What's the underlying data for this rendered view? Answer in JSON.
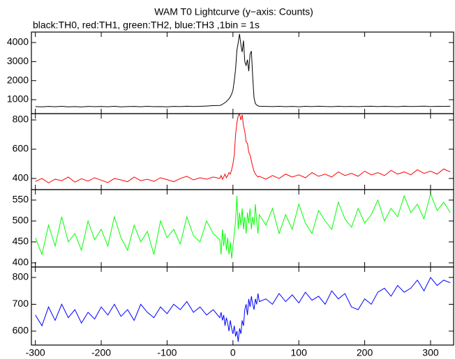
{
  "title": "WAM T0 Lightcurve (y−axis: Counts)",
  "subtitle": "black:TH0, red:TH1, green:TH2, blue:TH3 ,1bin = 1s",
  "chart_data": [
    {
      "type": "line",
      "color": "#000000",
      "xlim": [
        -306,
        335
      ],
      "xticks": [
        -300,
        -200,
        -100,
        0,
        100,
        200,
        300
      ],
      "ylim": [
        270,
        4550
      ],
      "yticks": [
        1000,
        2000,
        3000,
        4000
      ],
      "x": [
        -300,
        -290,
        -280,
        -270,
        -260,
        -250,
        -240,
        -230,
        -220,
        -210,
        -200,
        -190,
        -180,
        -170,
        -160,
        -150,
        -140,
        -130,
        -120,
        -110,
        -100,
        -90,
        -80,
        -70,
        -60,
        -50,
        -40,
        -30,
        -20,
        -18,
        -16,
        -14,
        -12,
        -10,
        -8,
        -6,
        -4,
        -2,
        0,
        2,
        4,
        6,
        8,
        10,
        12,
        14,
        16,
        18,
        20,
        22,
        24,
        26,
        28,
        30,
        32,
        34,
        36,
        38,
        40,
        50,
        60,
        70,
        80,
        90,
        100,
        110,
        120,
        130,
        140,
        150,
        160,
        170,
        180,
        190,
        200,
        210,
        220,
        230,
        240,
        250,
        260,
        270,
        280,
        290,
        300,
        310,
        320,
        330
      ],
      "values": [
        640,
        625,
        648,
        630,
        655,
        628,
        642,
        620,
        650,
        635,
        645,
        630,
        652,
        625,
        640,
        648,
        630,
        655,
        635,
        642,
        628,
        650,
        640,
        660,
        645,
        655,
        670,
        690,
        700,
        720,
        760,
        800,
        850,
        900,
        980,
        1050,
        1150,
        1300,
        1500,
        2000,
        2600,
        3600,
        4000,
        4450,
        3900,
        3500,
        4100,
        3000,
        2800,
        3100,
        2500,
        3400,
        3550,
        2200,
        1100,
        800,
        720,
        680,
        660,
        650,
        640,
        655,
        635,
        648,
        630,
        652,
        640,
        660,
        645,
        638,
        655,
        642,
        650,
        636,
        648,
        660,
        640,
        652,
        645,
        638,
        658,
        644,
        650,
        662,
        640,
        655,
        648,
        660
      ]
    },
    {
      "type": "line",
      "color": "#ff0000",
      "xlim": [
        -306,
        335
      ],
      "xticks": [
        -300,
        -200,
        -100,
        0,
        100,
        200,
        300
      ],
      "ylim": [
        324,
        843
      ],
      "yticks": [
        400,
        600,
        800
      ],
      "x": [
        -300,
        -290,
        -280,
        -270,
        -260,
        -250,
        -240,
        -230,
        -220,
        -210,
        -200,
        -190,
        -180,
        -170,
        -160,
        -150,
        -140,
        -130,
        -120,
        -110,
        -100,
        -90,
        -80,
        -70,
        -60,
        -50,
        -40,
        -30,
        -20,
        -18,
        -16,
        -14,
        -12,
        -10,
        -8,
        -6,
        -4,
        -2,
        0,
        2,
        4,
        6,
        8,
        10,
        12,
        14,
        16,
        18,
        20,
        22,
        24,
        26,
        28,
        30,
        32,
        34,
        36,
        38,
        40,
        50,
        60,
        70,
        80,
        90,
        100,
        110,
        120,
        130,
        140,
        150,
        160,
        170,
        180,
        190,
        200,
        210,
        220,
        230,
        240,
        250,
        260,
        270,
        280,
        290,
        300,
        310,
        320,
        330
      ],
      "values": [
        380,
        400,
        370,
        395,
        385,
        410,
        375,
        398,
        382,
        405,
        388,
        372,
        400,
        390,
        378,
        410,
        385,
        395,
        380,
        405,
        392,
        378,
        400,
        415,
        390,
        405,
        395,
        410,
        400,
        420,
        395,
        410,
        430,
        405,
        420,
        440,
        430,
        460,
        500,
        560,
        700,
        780,
        830,
        840,
        800,
        835,
        760,
        720,
        650,
        640,
        580,
        560,
        520,
        480,
        450,
        430,
        420,
        410,
        415,
        395,
        420,
        400,
        430,
        410,
        425,
        405,
        440,
        415,
        430,
        410,
        445,
        420,
        435,
        415,
        450,
        425,
        440,
        420,
        455,
        430,
        445,
        425,
        460,
        435,
        450,
        430,
        465,
        445
      ]
    },
    {
      "type": "line",
      "color": "#00ff00",
      "xlim": [
        -306,
        335
      ],
      "xticks": [
        -300,
        -200,
        -100,
        0,
        100,
        200,
        300
      ],
      "ylim": [
        390,
        575
      ],
      "yticks": [
        400,
        450,
        500,
        550
      ],
      "x": [
        -300,
        -290,
        -280,
        -270,
        -260,
        -250,
        -240,
        -230,
        -220,
        -210,
        -200,
        -190,
        -180,
        -170,
        -160,
        -150,
        -140,
        -130,
        -120,
        -110,
        -100,
        -90,
        -80,
        -70,
        -60,
        -50,
        -40,
        -30,
        -20,
        -18,
        -16,
        -14,
        -12,
        -10,
        -8,
        -6,
        -4,
        -2,
        0,
        2,
        4,
        6,
        8,
        10,
        12,
        14,
        16,
        18,
        20,
        22,
        24,
        26,
        28,
        30,
        32,
        34,
        36,
        38,
        40,
        50,
        60,
        70,
        80,
        90,
        100,
        110,
        120,
        130,
        140,
        150,
        160,
        170,
        180,
        190,
        200,
        210,
        220,
        230,
        240,
        250,
        260,
        270,
        280,
        290,
        300,
        310,
        320,
        330
      ],
      "values": [
        460,
        420,
        490,
        440,
        510,
        450,
        470,
        430,
        500,
        455,
        480,
        440,
        510,
        460,
        430,
        490,
        450,
        475,
        420,
        500,
        460,
        480,
        445,
        510,
        465,
        450,
        500,
        470,
        455,
        420,
        480,
        440,
        470,
        430,
        460,
        420,
        450,
        410,
        440,
        470,
        500,
        560,
        480,
        520,
        490,
        530,
        480,
        510,
        470,
        520,
        495,
        530,
        480,
        510,
        490,
        540,
        500,
        470,
        515,
        490,
        530,
        470,
        515,
        480,
        540,
        495,
        470,
        525,
        500,
        480,
        545,
        505,
        485,
        530,
        495,
        515,
        550,
        500,
        530,
        510,
        560,
        520,
        540,
        505,
        565,
        525,
        545,
        520
      ]
    },
    {
      "type": "line",
      "color": "#0000ff",
      "xlim": [
        -306,
        335
      ],
      "xticks": [
        -300,
        -200,
        -100,
        0,
        100,
        200,
        300
      ],
      "ylim": [
        548,
        839
      ],
      "yticks": [
        600,
        700,
        800
      ],
      "x": [
        -300,
        -290,
        -280,
        -270,
        -260,
        -250,
        -240,
        -230,
        -220,
        -210,
        -200,
        -190,
        -180,
        -170,
        -160,
        -150,
        -140,
        -130,
        -120,
        -110,
        -100,
        -90,
        -80,
        -70,
        -60,
        -50,
        -40,
        -30,
        -20,
        -18,
        -16,
        -14,
        -12,
        -10,
        -8,
        -6,
        -4,
        -2,
        0,
        2,
        4,
        6,
        8,
        10,
        12,
        14,
        16,
        18,
        20,
        22,
        24,
        26,
        28,
        30,
        32,
        34,
        36,
        38,
        40,
        50,
        60,
        70,
        80,
        90,
        100,
        110,
        120,
        130,
        140,
        150,
        160,
        170,
        180,
        190,
        200,
        210,
        220,
        230,
        240,
        250,
        260,
        270,
        280,
        290,
        300,
        310,
        320,
        330
      ],
      "values": [
        660,
        620,
        690,
        640,
        700,
        650,
        680,
        630,
        670,
        645,
        690,
        660,
        700,
        655,
        680,
        640,
        700,
        670,
        650,
        690,
        665,
        700,
        680,
        710,
        670,
        690,
        660,
        680,
        650,
        670,
        640,
        660,
        620,
        650,
        630,
        600,
        640,
        610,
        590,
        620,
        580,
        600,
        560,
        610,
        590,
        640,
        620,
        680,
        700,
        660,
        720,
        690,
        730,
        700,
        680,
        720,
        700,
        740,
        710,
        720,
        700,
        740,
        710,
        735,
        705,
        745,
        715,
        730,
        700,
        750,
        720,
        740,
        690,
        680,
        720,
        700,
        745,
        760,
        730,
        770,
        745,
        760,
        790,
        750,
        800,
        770,
        790,
        780
      ]
    }
  ]
}
